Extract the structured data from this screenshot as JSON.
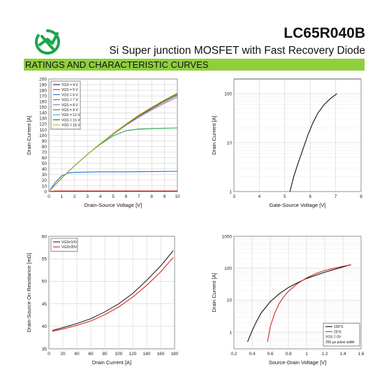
{
  "header": {
    "part_number": "LC65R040B",
    "subtitle": "Si Super junction MOSFET with Fast Recovery Diode",
    "section": "RATINGS AND CHARACTERISTIC CURVES",
    "brand_color": "#1aa64a",
    "banner_color": "#8fcf3c"
  },
  "chart_data": [
    {
      "id": "output",
      "type": "line",
      "xlabel": "Drain-Source Voltage [V]",
      "ylabel": "Drain Current [A]",
      "xlim": [
        0,
        10
      ],
      "ylim": [
        0,
        200
      ],
      "xticks": [
        0,
        1,
        2,
        3,
        4,
        5,
        6,
        7,
        8,
        9,
        10
      ],
      "yticks": [
        0,
        10,
        20,
        30,
        40,
        50,
        60,
        70,
        80,
        90,
        100,
        110,
        120,
        130,
        140,
        150,
        160,
        170,
        180,
        190,
        200
      ],
      "grid": true,
      "legend": "top-left",
      "series": [
        {
          "name": "VGS = 4 V",
          "color": "#222222",
          "x": [
            0,
            0.5,
            1,
            10
          ],
          "y": [
            0,
            0.5,
            0.5,
            0.5
          ]
        },
        {
          "name": "VGS = 5 V",
          "color": "#d62728",
          "x": [
            0,
            0.5,
            1,
            10
          ],
          "y": [
            0,
            1,
            1,
            1
          ]
        },
        {
          "name": "VGS = 6 V",
          "color": "#1f6fd6",
          "x": [
            0,
            0.5,
            1,
            1.5,
            2,
            3,
            4,
            6,
            8,
            10
          ],
          "y": [
            0,
            16,
            28,
            33,
            34,
            34.5,
            35,
            35,
            35.5,
            36
          ]
        },
        {
          "name": "VGS = 7 V",
          "color": "#2ca05a",
          "x": [
            0,
            1,
            2,
            3,
            4,
            5,
            6,
            7,
            8,
            10
          ],
          "y": [
            0,
            24,
            46,
            66,
            84,
            99,
            108,
            111,
            112,
            113
          ]
        },
        {
          "name": "VGS = 8 V",
          "color": "#9467bd",
          "x": [
            0,
            1,
            2,
            3,
            4,
            5,
            6,
            7,
            8,
            9,
            10
          ],
          "y": [
            0,
            24,
            46,
            66,
            85,
            102,
            118,
            132,
            145,
            157,
            168
          ]
        },
        {
          "name": "VGS = 9 V",
          "color": "#8b5a2b",
          "x": [
            0,
            1,
            2,
            3,
            4,
            5,
            6,
            7,
            8,
            9,
            10
          ],
          "y": [
            0,
            24,
            46,
            66,
            85,
            102,
            119,
            134,
            147,
            160,
            171
          ]
        },
        {
          "name": "VGS = 12 V",
          "color": "#17becf",
          "x": [
            0,
            1,
            2,
            3,
            4,
            5,
            6,
            7,
            8,
            9,
            10
          ],
          "y": [
            0,
            24,
            46,
            66,
            85,
            103,
            120,
            135,
            149,
            162,
            173
          ]
        },
        {
          "name": "VGS = 15 V",
          "color": "#4c4c4c",
          "x": [
            0,
            1,
            2,
            3,
            4,
            5,
            6,
            7,
            8,
            9,
            10
          ],
          "y": [
            0,
            24,
            46,
            66,
            85,
            103,
            120,
            135,
            149,
            162,
            174
          ]
        },
        {
          "name": "VGS = 18 V",
          "color": "#bcbd22",
          "x": [
            0,
            1,
            2,
            3,
            4,
            5,
            6,
            7,
            8,
            9,
            10
          ],
          "y": [
            0,
            24,
            46,
            66,
            85,
            103,
            120,
            136,
            150,
            163,
            175
          ]
        }
      ]
    },
    {
      "id": "transfer",
      "type": "line",
      "xlabel": "Gate-Source Voltage [V]",
      "ylabel": "Drain Current [A]",
      "xlim": [
        3,
        8
      ],
      "ylim": [
        1,
        200
      ],
      "yscale": "log",
      "xticks": [
        3,
        4,
        5,
        6,
        7,
        8
      ],
      "yticks": [
        1,
        10,
        100
      ],
      "ytick_labels": [
        "1",
        "10",
        "100"
      ],
      "grid": true,
      "series": [
        {
          "color": "#111111",
          "x": [
            5.2,
            5.35,
            5.5,
            5.7,
            5.9,
            6.1,
            6.3,
            6.55,
            6.8,
            7.05
          ],
          "y": [
            1,
            2,
            3.5,
            7,
            14,
            25,
            40,
            60,
            80,
            100
          ]
        }
      ]
    },
    {
      "id": "rdson",
      "type": "line",
      "xlabel": "Drain Current [A]",
      "ylabel": "Drain-Source On Resistance [mΩ]",
      "xlim": [
        0,
        180
      ],
      "ylim": [
        35,
        60
      ],
      "xticks": [
        0,
        20,
        40,
        60,
        80,
        100,
        120,
        140,
        160,
        180
      ],
      "yticks": [
        35,
        40,
        45,
        50,
        55,
        60
      ],
      "grid": true,
      "legend": "top-left",
      "series": [
        {
          "name": "VGS=10V",
          "color": "#222222",
          "x": [
            5,
            20,
            40,
            60,
            80,
            100,
            120,
            140,
            160,
            178
          ],
          "y": [
            39.1,
            39.7,
            40.6,
            41.7,
            43.2,
            45.0,
            47.3,
            50.2,
            53.4,
            56.8
          ]
        },
        {
          "name": "VGS=20V",
          "color": "#d62728",
          "x": [
            5,
            20,
            40,
            60,
            80,
            100,
            120,
            140,
            160,
            178
          ],
          "y": [
            38.9,
            39.4,
            40.2,
            41.2,
            42.6,
            44.3,
            46.5,
            49.1,
            52.1,
            55.3
          ]
        }
      ]
    },
    {
      "id": "diode",
      "type": "line",
      "xlabel": "Source-Drain Voltage [V]",
      "ylabel": "Drain Current [A]",
      "xlim": [
        0.2,
        1.6
      ],
      "ylim": [
        0.3,
        1000
      ],
      "yscale": "log",
      "xticks": [
        0.2,
        0.4,
        0.6,
        0.8,
        1.0,
        1.2,
        1.4,
        1.6
      ],
      "yticks": [
        1,
        10,
        100,
        1000
      ],
      "ytick_labels": [
        "1",
        "10",
        "100",
        "1000"
      ],
      "grid": true,
      "legend": "bottom-right",
      "legend_notes": [
        "VGS = 0V",
        "250 µs pulse width"
      ],
      "series": [
        {
          "name": "150℃",
          "color": "#111111",
          "x": [
            0.35,
            0.4,
            0.45,
            0.5,
            0.6,
            0.7,
            0.8,
            0.9,
            1.0,
            1.2,
            1.49
          ],
          "y": [
            0.5,
            1.1,
            2.2,
            4,
            9,
            16,
            25,
            35,
            48,
            75,
            130
          ]
        },
        {
          "name": "25℃",
          "color": "#d62728",
          "x": [
            0.57,
            0.6,
            0.65,
            0.7,
            0.75,
            0.8,
            0.9,
            1.0,
            1.1,
            1.2,
            1.3,
            1.49
          ],
          "y": [
            0.5,
            1.5,
            4,
            8,
            13,
            19,
            33,
            50,
            68,
            85,
            100,
            130
          ]
        }
      ]
    }
  ]
}
